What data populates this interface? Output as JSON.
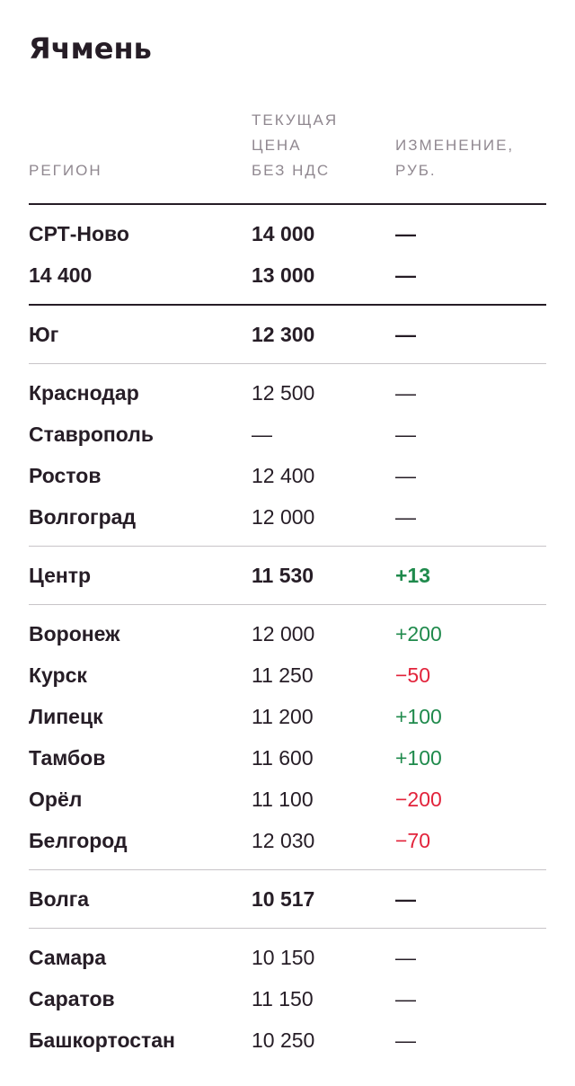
{
  "title": "Ячмень",
  "header": {
    "region": "РЕГИОН",
    "price": "ТЕКУЩАЯ\nЦЕНА\nБЕЗ НДС",
    "change": "ИЗМЕНЕНИЕ,\nРУБ."
  },
  "groups": [
    {
      "rows": [
        {
          "region": "СРТ-Ново",
          "price": "14 000",
          "change": "—",
          "trend": "neutral"
        },
        {
          "region": "14 400",
          "price": "13 000",
          "change": "—",
          "trend": "neutral"
        }
      ]
    },
    {
      "rows": [
        {
          "region": "Юг",
          "price": "12 300",
          "change": "—",
          "trend": "neutral"
        }
      ]
    },
    {
      "rows": [
        {
          "region": "Краснодар",
          "price": "12 500",
          "change": "—",
          "trend": "neutral"
        },
        {
          "region": "Ставрополь",
          "price": "—",
          "change": "—",
          "trend": "neutral"
        },
        {
          "region": "Ростов",
          "price": "12 400",
          "change": "—",
          "trend": "neutral"
        },
        {
          "region": "Волгоград",
          "price": "12 000",
          "change": "—",
          "trend": "neutral"
        }
      ]
    },
    {
      "rows": [
        {
          "region": "Центр",
          "price": "11 530",
          "change": "+13",
          "trend": "up"
        }
      ]
    },
    {
      "rows": [
        {
          "region": "Воронеж",
          "price": "12 000",
          "change": "+200",
          "trend": "up"
        },
        {
          "region": "Курск",
          "price": "11 250",
          "change": "−50",
          "trend": "down"
        },
        {
          "region": "Липецк",
          "price": "11 200",
          "change": "+100",
          "trend": "up"
        },
        {
          "region": "Тамбов",
          "price": "11 600",
          "change": "+100",
          "trend": "up"
        },
        {
          "region": "Орёл",
          "price": "11 100",
          "change": "−200",
          "trend": "down"
        },
        {
          "region": "Белгород",
          "price": "12 030",
          "change": "−70",
          "trend": "down"
        }
      ]
    },
    {
      "rows": [
        {
          "region": "Волга",
          "price": "10 517",
          "change": "—",
          "trend": "neutral"
        }
      ]
    },
    {
      "rows": [
        {
          "region": "Самара",
          "price": "10 150",
          "change": "—",
          "trend": "neutral"
        },
        {
          "region": "Саратов",
          "price": "11 150",
          "change": "—",
          "trend": "neutral"
        },
        {
          "region": "Башкортостан",
          "price": "10 250",
          "change": "—",
          "trend": "neutral"
        }
      ]
    }
  ],
  "colors": {
    "text": "#261d26",
    "muted": "#908890",
    "positive": "#1f8a4c",
    "negative": "#e2233b",
    "divider": "#c8c4c8"
  }
}
